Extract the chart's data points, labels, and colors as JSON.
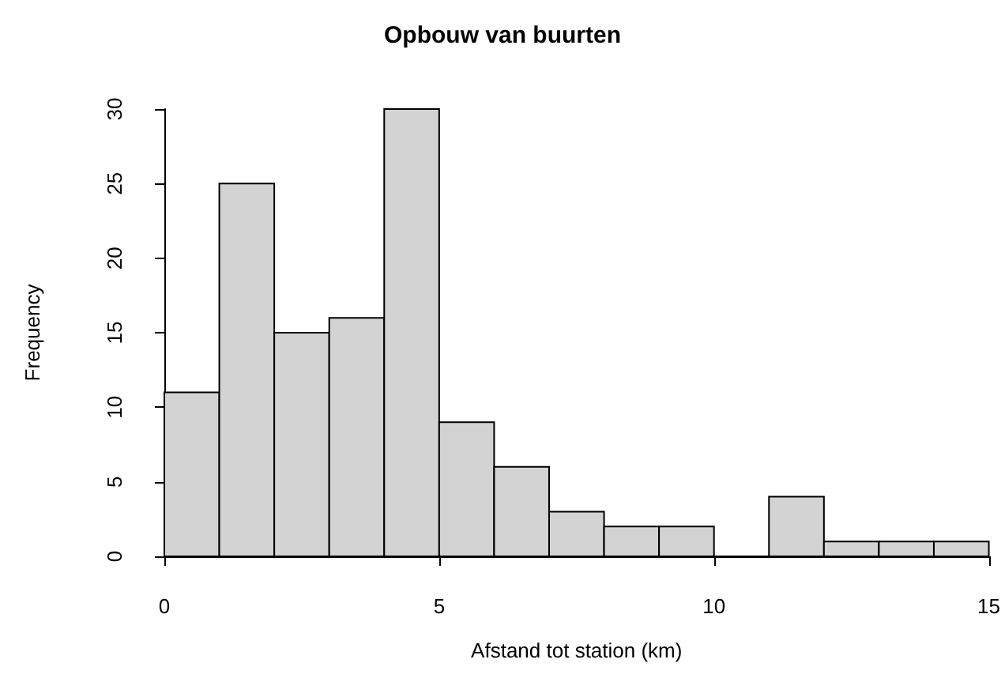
{
  "chart_data": {
    "type": "histogram",
    "title": "Opbouw van buurten",
    "xlabel": "Afstand tot station (km)",
    "ylabel": "Frequency",
    "bins": [
      0,
      1,
      2,
      3,
      4,
      5,
      6,
      7,
      8,
      9,
      10,
      11,
      12,
      13,
      14,
      15
    ],
    "values": [
      11,
      25,
      15,
      16,
      30,
      9,
      6,
      3,
      2,
      2,
      0,
      4,
      1,
      1,
      1
    ],
    "color": "#d3d3d3",
    "xlim": [
      0,
      15
    ],
    "xticks": [
      0,
      5,
      10,
      15
    ],
    "ylim": [
      0,
      30
    ],
    "yticks": [
      0,
      5,
      10,
      15,
      20,
      25,
      30
    ],
    "grid": false
  }
}
